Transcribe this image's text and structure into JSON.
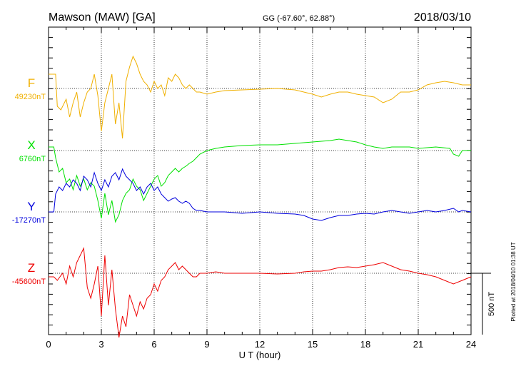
{
  "header": {
    "station": "Mawson (MAW)  [GA]",
    "coords": "GG (-67.60°,  62.88°)",
    "date": "2018/03/10"
  },
  "side_note": "Plotted at 2018/04/10 01:38 UT",
  "scale_label": "500 nT",
  "colors": {
    "F": "#f0b000",
    "X": "#00e000",
    "Y": "#0000dd",
    "Z": "#ee0000",
    "axis": "#000000"
  },
  "chart_data": {
    "type": "line",
    "xlabel": "U T (hour)",
    "xlim": [
      0,
      24
    ],
    "xticks": [
      "0",
      "3",
      "6",
      "9",
      "12",
      "15",
      "18",
      "21",
      "24"
    ],
    "series": [
      {
        "key": "F",
        "name": "F",
        "baseline": "49230nT",
        "points": [
          [
            0,
            20
          ],
          [
            0.4,
            20
          ],
          [
            0.5,
            -25
          ],
          [
            0.7,
            -30
          ],
          [
            1,
            -15
          ],
          [
            1.2,
            -40
          ],
          [
            1.4,
            -20
          ],
          [
            1.6,
            -5
          ],
          [
            1.8,
            -40
          ],
          [
            2,
            -20
          ],
          [
            2.2,
            -5
          ],
          [
            2.4,
            0
          ],
          [
            2.6,
            20
          ],
          [
            2.8,
            -10
          ],
          [
            3,
            -60
          ],
          [
            3.2,
            -20
          ],
          [
            3.4,
            0
          ],
          [
            3.6,
            20
          ],
          [
            3.8,
            -50
          ],
          [
            4,
            -20
          ],
          [
            4.2,
            -70
          ],
          [
            4.4,
            10
          ],
          [
            4.6,
            30
          ],
          [
            4.8,
            45
          ],
          [
            5,
            35
          ],
          [
            5.2,
            20
          ],
          [
            5.4,
            10
          ],
          [
            5.6,
            5
          ],
          [
            5.8,
            -5
          ],
          [
            6,
            10
          ],
          [
            6.2,
            0
          ],
          [
            6.4,
            5
          ],
          [
            6.6,
            -10
          ],
          [
            6.8,
            15
          ],
          [
            7,
            10
          ],
          [
            7.2,
            20
          ],
          [
            7.4,
            15
          ],
          [
            7.6,
            5
          ],
          [
            7.8,
            0
          ],
          [
            8,
            5
          ],
          [
            8.2,
            0
          ],
          [
            8.4,
            -5
          ],
          [
            8.6,
            -5
          ],
          [
            9,
            -8
          ],
          [
            9.5,
            -5
          ],
          [
            10,
            -3
          ],
          [
            11,
            -2
          ],
          [
            12,
            -1
          ],
          [
            13,
            0
          ],
          [
            14,
            -2
          ],
          [
            15,
            -8
          ],
          [
            15.5,
            -12
          ],
          [
            16,
            -8
          ],
          [
            16.5,
            -5
          ],
          [
            17,
            -5
          ],
          [
            17.5,
            -8
          ],
          [
            18,
            -10
          ],
          [
            18.5,
            -12
          ],
          [
            19,
            -20
          ],
          [
            19.5,
            -15
          ],
          [
            20,
            -5
          ],
          [
            20.5,
            -5
          ],
          [
            21,
            -2
          ],
          [
            21.5,
            5
          ],
          [
            22,
            8
          ],
          [
            22.5,
            10
          ],
          [
            23,
            8
          ],
          [
            23.5,
            5
          ],
          [
            24,
            5
          ]
        ]
      },
      {
        "key": "X",
        "name": "X",
        "baseline": "6760nT",
        "points": [
          [
            0,
            5
          ],
          [
            0.3,
            5
          ],
          [
            0.4,
            -10
          ],
          [
            0.6,
            -30
          ],
          [
            0.8,
            -25
          ],
          [
            1,
            -45
          ],
          [
            1.2,
            -40
          ],
          [
            1.4,
            -55
          ],
          [
            1.6,
            -35
          ],
          [
            1.8,
            -50
          ],
          [
            2,
            -40
          ],
          [
            2.2,
            -55
          ],
          [
            2.4,
            -45
          ],
          [
            2.6,
            -50
          ],
          [
            2.8,
            -70
          ],
          [
            3,
            -95
          ],
          [
            3.2,
            -60
          ],
          [
            3.4,
            -90
          ],
          [
            3.6,
            -70
          ],
          [
            3.8,
            -100
          ],
          [
            4,
            -90
          ],
          [
            4.2,
            -70
          ],
          [
            4.4,
            -60
          ],
          [
            4.6,
            -55
          ],
          [
            4.8,
            -40
          ],
          [
            5,
            -50
          ],
          [
            5.2,
            -55
          ],
          [
            5.4,
            -70
          ],
          [
            5.6,
            -60
          ],
          [
            5.8,
            -50
          ],
          [
            6,
            -40
          ],
          [
            6.2,
            -35
          ],
          [
            6.4,
            -50
          ],
          [
            6.6,
            -45
          ],
          [
            6.8,
            -35
          ],
          [
            7,
            -30
          ],
          [
            7.2,
            -25
          ],
          [
            7.4,
            -30
          ],
          [
            7.6,
            -25
          ],
          [
            7.8,
            -22
          ],
          [
            8,
            -18
          ],
          [
            8.2,
            -15
          ],
          [
            8.4,
            -10
          ],
          [
            8.6,
            -5
          ],
          [
            9,
            0
          ],
          [
            9.5,
            3
          ],
          [
            10,
            5
          ],
          [
            11,
            7
          ],
          [
            12,
            8
          ],
          [
            13,
            8
          ],
          [
            14,
            10
          ],
          [
            15,
            12
          ],
          [
            15.5,
            13
          ],
          [
            16,
            14
          ],
          [
            16.5,
            16
          ],
          [
            17,
            14
          ],
          [
            17.5,
            12
          ],
          [
            18,
            8
          ],
          [
            18.5,
            5
          ],
          [
            19,
            3
          ],
          [
            19.5,
            5
          ],
          [
            20,
            5
          ],
          [
            20.5,
            5
          ],
          [
            21,
            3
          ],
          [
            22,
            5
          ],
          [
            22.8,
            3
          ],
          [
            23,
            -5
          ],
          [
            23.3,
            -8
          ],
          [
            23.5,
            0
          ],
          [
            24,
            0
          ]
        ]
      },
      {
        "key": "Y",
        "name": "Y",
        "baseline": "-17270nT",
        "points": [
          [
            0,
            0
          ],
          [
            0.3,
            0
          ],
          [
            0.4,
            25
          ],
          [
            0.6,
            35
          ],
          [
            0.8,
            30
          ],
          [
            1,
            40
          ],
          [
            1.2,
            35
          ],
          [
            1.4,
            45
          ],
          [
            1.6,
            40
          ],
          [
            1.8,
            30
          ],
          [
            2,
            50
          ],
          [
            2.2,
            45
          ],
          [
            2.4,
            35
          ],
          [
            2.6,
            55
          ],
          [
            2.8,
            40
          ],
          [
            3,
            30
          ],
          [
            3.2,
            45
          ],
          [
            3.4,
            35
          ],
          [
            3.6,
            50
          ],
          [
            3.8,
            55
          ],
          [
            4,
            45
          ],
          [
            4.2,
            60
          ],
          [
            4.4,
            50
          ],
          [
            4.6,
            45
          ],
          [
            4.8,
            40
          ],
          [
            5,
            30
          ],
          [
            5.2,
            35
          ],
          [
            5.4,
            25
          ],
          [
            5.6,
            35
          ],
          [
            5.8,
            40
          ],
          [
            6,
            30
          ],
          [
            6.2,
            35
          ],
          [
            6.4,
            25
          ],
          [
            6.6,
            20
          ],
          [
            6.8,
            15
          ],
          [
            7,
            18
          ],
          [
            7.2,
            20
          ],
          [
            7.4,
            15
          ],
          [
            7.6,
            12
          ],
          [
            7.8,
            15
          ],
          [
            8,
            12
          ],
          [
            8.2,
            5
          ],
          [
            8.4,
            2
          ],
          [
            8.6,
            2
          ],
          [
            9,
            0
          ],
          [
            9.5,
            0
          ],
          [
            10,
            0
          ],
          [
            11,
            -2
          ],
          [
            12,
            0
          ],
          [
            13,
            -2
          ],
          [
            14,
            -3
          ],
          [
            14.5,
            -5
          ],
          [
            15,
            -10
          ],
          [
            15.5,
            -12
          ],
          [
            16,
            -8
          ],
          [
            16.5,
            -5
          ],
          [
            17,
            -5
          ],
          [
            17.5,
            -3
          ],
          [
            18,
            -2
          ],
          [
            18.5,
            -3
          ],
          [
            19,
            0
          ],
          [
            19.5,
            2
          ],
          [
            20,
            0
          ],
          [
            20.5,
            -2
          ],
          [
            21,
            0
          ],
          [
            21.5,
            2
          ],
          [
            22,
            0
          ],
          [
            22.5,
            2
          ],
          [
            23,
            5
          ],
          [
            23.3,
            0
          ],
          [
            23.5,
            2
          ],
          [
            24,
            0
          ]
        ]
      },
      {
        "key": "Z",
        "name": "Z",
        "baseline": "-45600nT",
        "points": [
          [
            0,
            -5
          ],
          [
            0.3,
            -5
          ],
          [
            0.5,
            -10
          ],
          [
            0.8,
            0
          ],
          [
            1,
            -15
          ],
          [
            1.2,
            10
          ],
          [
            1.4,
            -5
          ],
          [
            1.6,
            15
          ],
          [
            1.8,
            25
          ],
          [
            2,
            35
          ],
          [
            2.2,
            -20
          ],
          [
            2.4,
            -35
          ],
          [
            2.6,
            -15
          ],
          [
            2.8,
            10
          ],
          [
            3,
            -60
          ],
          [
            3.2,
            25
          ],
          [
            3.4,
            -45
          ],
          [
            3.6,
            5
          ],
          [
            3.8,
            -50
          ],
          [
            4,
            -90
          ],
          [
            4.2,
            -60
          ],
          [
            4.4,
            -75
          ],
          [
            4.6,
            -30
          ],
          [
            4.8,
            -45
          ],
          [
            5,
            -60
          ],
          [
            5.2,
            -40
          ],
          [
            5.4,
            -50
          ],
          [
            5.6,
            -35
          ],
          [
            5.8,
            -30
          ],
          [
            6,
            -15
          ],
          [
            6.2,
            -25
          ],
          [
            6.4,
            -10
          ],
          [
            6.6,
            -5
          ],
          [
            6.8,
            5
          ],
          [
            7,
            10
          ],
          [
            7.2,
            15
          ],
          [
            7.4,
            5
          ],
          [
            7.6,
            10
          ],
          [
            7.8,
            5
          ],
          [
            8,
            0
          ],
          [
            8.2,
            -5
          ],
          [
            8.4,
            -5
          ],
          [
            8.6,
            0
          ],
          [
            9,
            0
          ],
          [
            9.5,
            2
          ],
          [
            10,
            0
          ],
          [
            11,
            0
          ],
          [
            12,
            0
          ],
          [
            13,
            -1
          ],
          [
            14,
            0
          ],
          [
            14.5,
            2
          ],
          [
            15,
            3
          ],
          [
            15.5,
            3
          ],
          [
            16,
            5
          ],
          [
            16.5,
            8
          ],
          [
            17,
            9
          ],
          [
            17.5,
            8
          ],
          [
            18,
            10
          ],
          [
            18.5,
            12
          ],
          [
            19,
            15
          ],
          [
            19.5,
            10
          ],
          [
            20,
            5
          ],
          [
            20.5,
            3
          ],
          [
            21,
            0
          ],
          [
            21.5,
            -2
          ],
          [
            22,
            -5
          ],
          [
            22.5,
            -10
          ],
          [
            23,
            -15
          ],
          [
            23.5,
            -10
          ],
          [
            24,
            -5
          ]
        ]
      }
    ]
  }
}
